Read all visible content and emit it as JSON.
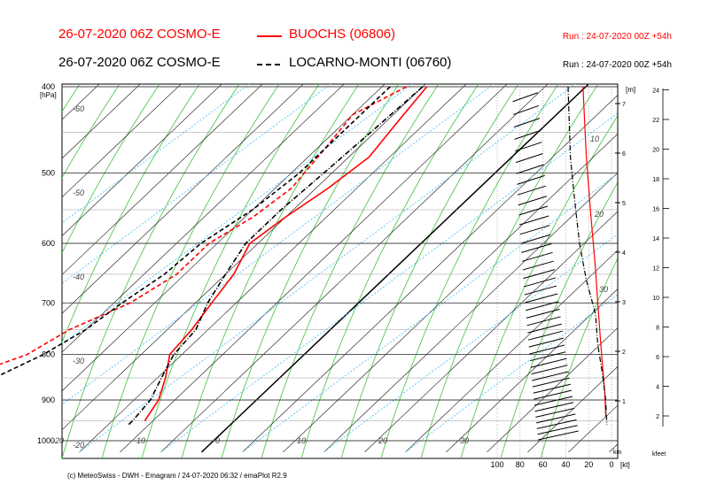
{
  "header": {
    "row1": {
      "title": "26-07-2020 06Z COSMO-E",
      "station": "BUOCHS (06806)",
      "run": "Run : 24-07-2020 00Z +54h",
      "color": "#ff0000"
    },
    "row2": {
      "title": "26-07-2020 06Z COSMO-E",
      "station": "LOCARNO-MONTI (06760)",
      "run": "Run : 24-07-2020 00Z +54h",
      "color": "#000000"
    }
  },
  "footer": "(c) MeteoSwiss - DWH - Emagram / 24-07-2020  06:32 / emaPlot R2.9",
  "chart_data": {
    "type": "line",
    "title": "Emagram",
    "ylabel": "[hPa]",
    "pressure_ticks": [
      400,
      500,
      600,
      700,
      800,
      900,
      1000
    ],
    "pressure_range": [
      400,
      1030
    ],
    "x_temp_range": [
      -40,
      40
    ],
    "isotherm_labels": [
      -60,
      -50,
      -40,
      -30,
      -20,
      -10,
      0,
      10,
      20,
      30
    ],
    "isotherm_label_texts": [
      "-60",
      "-50",
      "-40",
      "-30",
      "-20",
      "-10",
      "0",
      "10",
      "20",
      "30"
    ],
    "left_temp_labels": [
      "-60",
      "-50",
      "-40",
      "-30",
      "-20"
    ],
    "left_temp_label_values": [
      -60,
      -50,
      -40,
      -30,
      -20
    ],
    "wind_axis_label": "[kt]",
    "wind_ticks": [
      100,
      80,
      60,
      40,
      20,
      0
    ],
    "wind_tick_labels": [
      "100",
      "80",
      "60",
      "40",
      "20",
      "0"
    ],
    "mixing_ratio_labels": [
      "10",
      "20",
      "30"
    ],
    "height_m_label": "[m]",
    "height_m_ticks": [
      1,
      2,
      3,
      4,
      5,
      6,
      7
    ],
    "height_km_label": "km",
    "height_kfeet_label": "kfeet",
    "kfeet_ticks": [
      2,
      4,
      6,
      8,
      10,
      12,
      14,
      16,
      18,
      20,
      22,
      24
    ],
    "series": [
      {
        "name": "BUOCHS (06806)",
        "color": "#ff0000",
        "variable": "temperature",
        "style": "solid",
        "points": [
          [
            400,
            -19.5
          ],
          [
            440,
            -18.5
          ],
          [
            480,
            -17.5
          ],
          [
            520,
            -18.5
          ],
          [
            560,
            -20
          ],
          [
            600,
            -21
          ],
          [
            650,
            -19
          ],
          [
            700,
            -18
          ],
          [
            750,
            -17
          ],
          [
            800,
            -16.5
          ],
          [
            850,
            -14
          ],
          [
            900,
            -12
          ],
          [
            950,
            -11
          ]
        ]
      },
      {
        "name": "BUOCHS (06806)",
        "color": "#ff0000",
        "variable": "dewpoint",
        "style": "dashed",
        "points": [
          [
            400,
            -22
          ],
          [
            430,
            -25
          ],
          [
            470,
            -24
          ],
          [
            520,
            -23
          ],
          [
            560,
            -24
          ],
          [
            600,
            -26
          ],
          [
            650,
            -26
          ],
          [
            700,
            -28
          ],
          [
            750,
            -32
          ],
          [
            800,
            -34
          ],
          [
            850,
            -39
          ],
          [
            900,
            -41
          ],
          [
            920,
            -42
          ],
          [
            950,
            -39
          ]
        ]
      },
      {
        "name": "LOCARNO-MONTI (06760)",
        "color": "#000000",
        "variable": "temperature",
        "style": "dashdot",
        "points": [
          [
            400,
            -20
          ],
          [
            450,
            -20.5
          ],
          [
            500,
            -21
          ],
          [
            550,
            -21.5
          ],
          [
            600,
            -21.5
          ],
          [
            650,
            -20
          ],
          [
            700,
            -18.5
          ],
          [
            750,
            -16.5
          ],
          [
            800,
            -16
          ],
          [
            850,
            -14.5
          ],
          [
            900,
            -13
          ],
          [
            950,
            -12.5
          ],
          [
            960,
            -12.5
          ]
        ]
      },
      {
        "name": "LOCARNO-MONTI (06760)",
        "color": "#000000",
        "variable": "dewpoint",
        "style": "dashed",
        "points": [
          [
            400,
            -24
          ],
          [
            450,
            -24
          ],
          [
            500,
            -24
          ],
          [
            550,
            -25
          ],
          [
            600,
            -27
          ],
          [
            650,
            -27.5
          ],
          [
            700,
            -29
          ],
          [
            750,
            -30
          ],
          [
            800,
            -32
          ],
          [
            850,
            -35
          ],
          [
            900,
            -37
          ],
          [
            950,
            -39
          ]
        ]
      }
    ],
    "wind_speed_series": [
      {
        "name": "BUOCHS (06806)",
        "color": "#ff0000",
        "style": "solid",
        "points": [
          [
            400,
            25
          ],
          [
            480,
            22
          ],
          [
            560,
            18
          ],
          [
            640,
            14
          ],
          [
            700,
            12
          ],
          [
            760,
            10
          ],
          [
            820,
            8
          ],
          [
            880,
            6
          ],
          [
            940,
            5
          ]
        ]
      },
      {
        "name": "LOCARNO-MONTI (06760)",
        "color": "#000000",
        "style": "dashdot",
        "points": [
          [
            400,
            38
          ],
          [
            480,
            36
          ],
          [
            540,
            32
          ],
          [
            600,
            28
          ],
          [
            660,
            22
          ],
          [
            720,
            14
          ],
          [
            780,
            12
          ],
          [
            840,
            8
          ],
          [
            900,
            5
          ],
          [
            960,
            4
          ]
        ]
      }
    ]
  }
}
